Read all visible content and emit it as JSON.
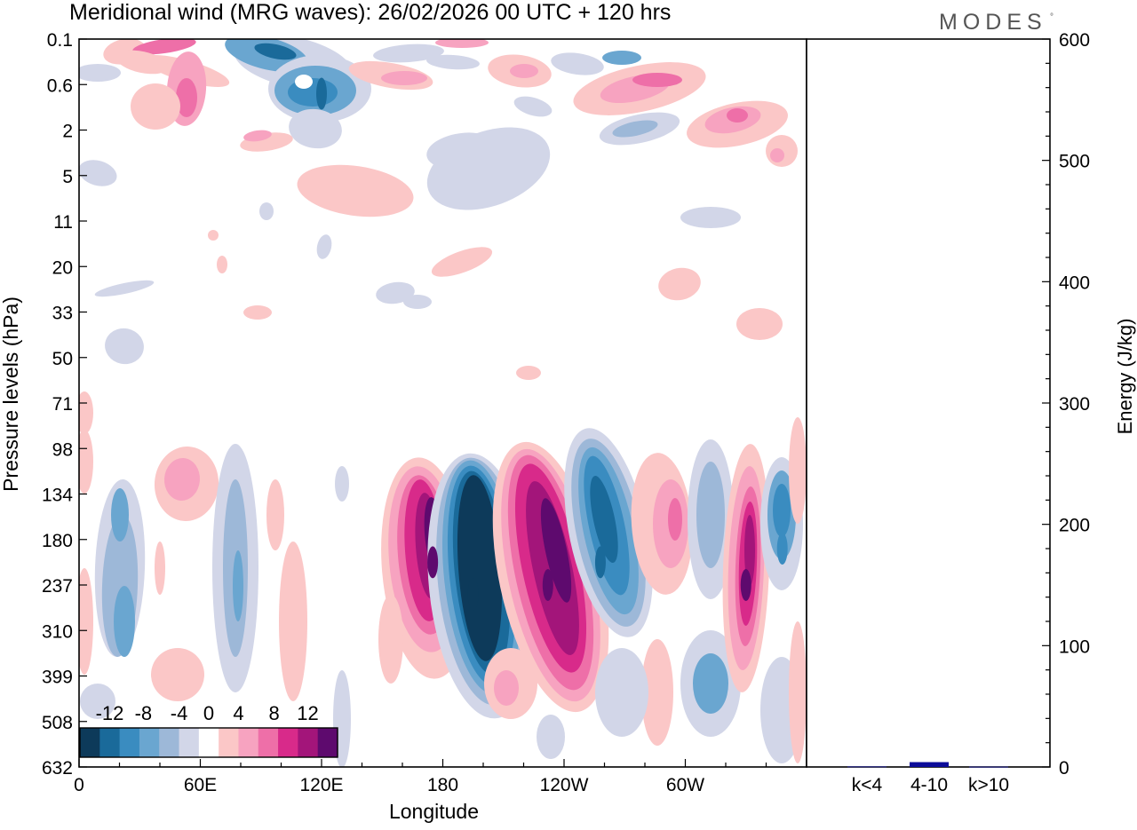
{
  "header": {
    "title": "Meridional wind (MRG waves):  26/02/2026  00 UTC  + 120 hrs",
    "brand": "MODES",
    "brand_mark": "°"
  },
  "chart_data": [
    {
      "type": "heatmap",
      "title": "Meridional wind (MRG waves)",
      "xlabel": "Longitude",
      "ylabel": "Pressure levels (hPa)",
      "x_ticks": [
        "0",
        "60E",
        "120E",
        "180",
        "120W",
        "60W"
      ],
      "x_tick_values": [
        0,
        60,
        120,
        180,
        240,
        300
      ],
      "xlim": [
        0,
        360
      ],
      "y_ticks": [
        "0.1",
        "0.6",
        "2",
        "5",
        "11",
        "20",
        "33",
        "50",
        "71",
        "98",
        "134",
        "180",
        "237",
        "310",
        "399",
        "508",
        "632"
      ],
      "colorbar": {
        "labels": [
          "-12",
          "-8",
          "-4",
          "0",
          "4",
          "8",
          "12"
        ],
        "levels": [
          -14,
          -12,
          -10,
          -8,
          -6,
          -4,
          -2,
          2,
          4,
          6,
          8,
          10,
          12,
          14
        ],
        "colors": [
          "#0d3a5a",
          "#1a6a9a",
          "#3a8cc0",
          "#6aa6d0",
          "#9db8d8",
          "#d2d6e8",
          "#ffffff",
          "#fbc7c7",
          "#f7a3c0",
          "#ee6fa8",
          "#d82a8a",
          "#a3157a",
          "#5e0a6e"
        ]
      },
      "features": [
        {
          "lon": 120,
          "level_index": 1.2,
          "value": -11
        },
        {
          "lon": 175,
          "level_index": 11.5,
          "value": 12
        },
        {
          "lon": 195,
          "level_index": 12.2,
          "value": -14
        },
        {
          "lon": 232,
          "level_index": 12.0,
          "value": 13
        },
        {
          "lon": 258,
          "level_index": 11.5,
          "value": -11
        },
        {
          "lon": 330,
          "level_index": 12.0,
          "value": 14
        },
        {
          "lon": 348,
          "level_index": 11.2,
          "value": -10
        }
      ]
    },
    {
      "type": "bar",
      "ylabel": "Energy (J/kg)",
      "categories": [
        "k<4",
        "4-10",
        "k>10"
      ],
      "values": [
        0.5,
        4,
        0.3
      ],
      "bar_colors": [
        "#1a1a8a",
        "#0c0c99",
        "#1a1a8a"
      ],
      "ylim": [
        0,
        600
      ],
      "y_ticks": [
        "0",
        "100",
        "200",
        "300",
        "400",
        "500",
        "600"
      ],
      "y_tick_values": [
        0,
        100,
        200,
        300,
        400,
        500,
        600
      ]
    }
  ]
}
